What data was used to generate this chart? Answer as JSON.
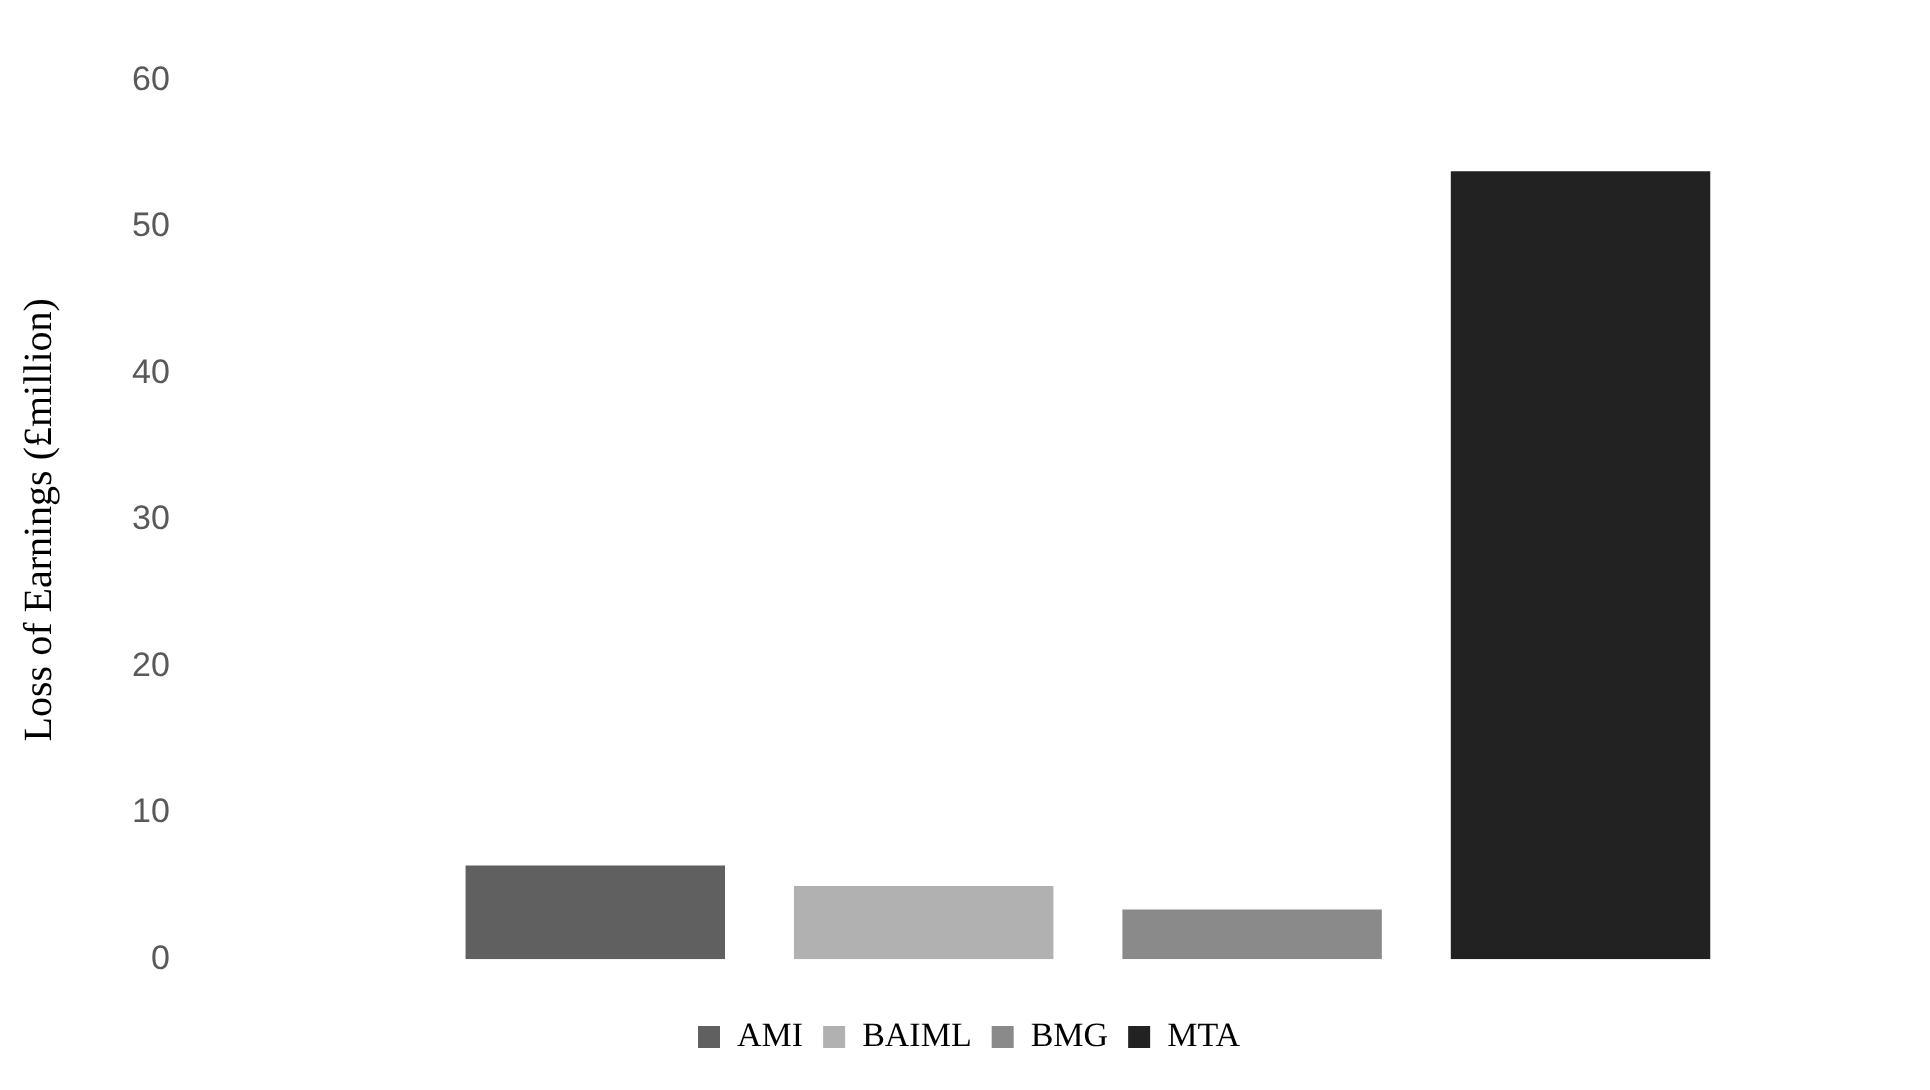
{
  "chart_data": {
    "type": "bar",
    "ylabel": "Loss of Earnings (£million)",
    "categories": [
      null
    ],
    "series": [
      {
        "name": "AMI",
        "color": "#606060",
        "values": [
          6.4
        ]
      },
      {
        "name": "BAIML",
        "color": "#b1b1b1",
        "values": [
          5.0
        ]
      },
      {
        "name": "BMG",
        "color": "#8a8a8a",
        "values": [
          3.4
        ]
      },
      {
        "name": "MTA",
        "color": "#222222",
        "values": [
          53.8
        ]
      }
    ],
    "ylim": [
      0,
      60
    ],
    "yticks": [
      0,
      10,
      20,
      30,
      40,
      50,
      60
    ],
    "grid": false,
    "legend": "bottom"
  }
}
